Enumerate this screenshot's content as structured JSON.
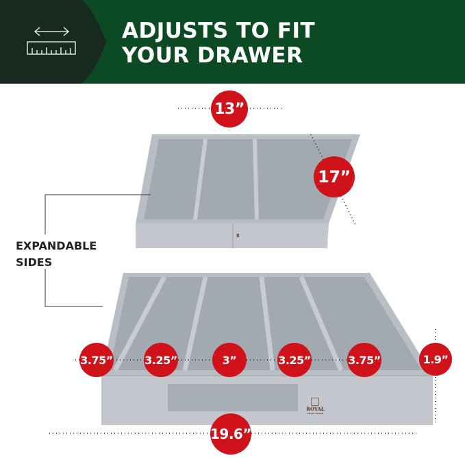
{
  "header": {
    "title_line1": "ADJUSTS TO FIT",
    "title_line2": "YOUR DRAWER",
    "icon": "ruler-with-arrow-icon",
    "colors": {
      "banner": "#0b4a22",
      "icon_panel": "#172a1f",
      "badge": "#d0121b"
    }
  },
  "labels": {
    "expandable_line1": "EXPANDABLE",
    "expandable_line2": "SIDES"
  },
  "closed_tray": {
    "width": "13”",
    "depth": "17”"
  },
  "expanded_tray": {
    "compartments": [
      "3.75”",
      "3.25”",
      "3”",
      "3.25”",
      "3.75”"
    ],
    "height": "1.9”",
    "width": "19.6”"
  },
  "brand": {
    "name": "ROYAL",
    "sub": "CRAFT WOOD"
  }
}
